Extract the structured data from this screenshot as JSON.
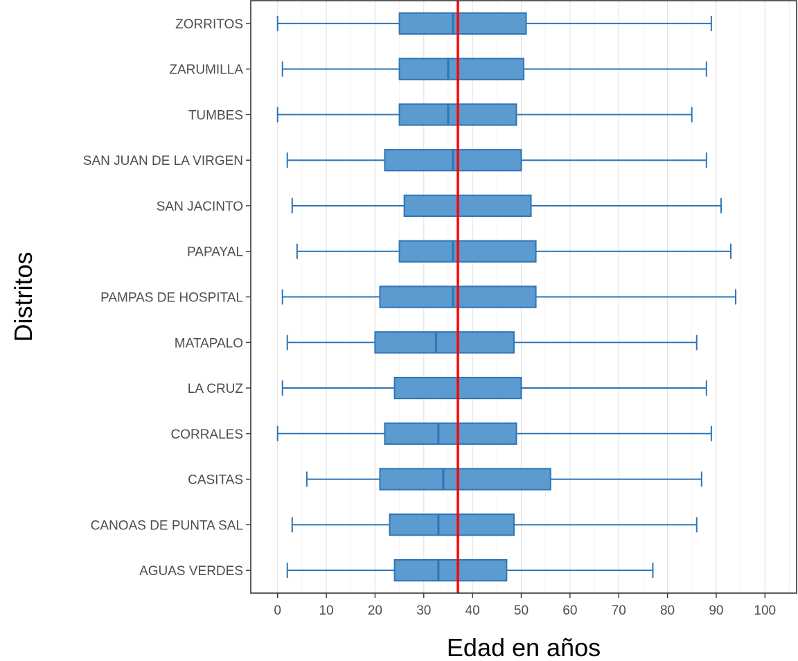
{
  "chart_data": {
    "type": "boxplot",
    "orientation": "horizontal",
    "xlabel": "Edad en años",
    "ylabel": "Distritos",
    "xlim": [
      -5.5,
      106.5
    ],
    "x_ticks": [
      0,
      10,
      20,
      30,
      40,
      50,
      60,
      70,
      80,
      90,
      100
    ],
    "grid": "vertical major and minor lines, light grey",
    "reference_line": {
      "x": 37,
      "color": "#ff0000"
    },
    "box_fill": "#5b9bd0",
    "box_stroke": "#2e75b6",
    "categories": [
      "ZORRITOS",
      "ZARUMILLA",
      "TUMBES",
      "SAN JUAN DE LA VIRGEN",
      "SAN JACINTO",
      "PAPAYAL",
      "PAMPAS DE HOSPITAL",
      "MATAPALO",
      "LA CRUZ",
      "CORRALES",
      "CASITAS",
      "CANOAS DE PUNTA SAL",
      "AGUAS VERDES"
    ],
    "boxes": [
      {
        "min": 0,
        "q1": 25,
        "median": 36,
        "q3": 51,
        "max": 89
      },
      {
        "min": 1,
        "q1": 25,
        "median": 35,
        "q3": 50.5,
        "max": 88
      },
      {
        "min": 0,
        "q1": 25,
        "median": 35,
        "q3": 49,
        "max": 85
      },
      {
        "min": 2,
        "q1": 22,
        "median": 36,
        "q3": 50,
        "max": 88
      },
      {
        "min": 3,
        "q1": 26,
        "median": 37,
        "q3": 52,
        "max": 91
      },
      {
        "min": 4,
        "q1": 25,
        "median": 36,
        "q3": 53,
        "max": 93
      },
      {
        "min": 1,
        "q1": 21,
        "median": 36,
        "q3": 53,
        "max": 94
      },
      {
        "min": 2,
        "q1": 20,
        "median": 32.5,
        "q3": 48.5,
        "max": 86
      },
      {
        "min": 1,
        "q1": 24,
        "median": 37,
        "q3": 50,
        "max": 88
      },
      {
        "min": 0,
        "q1": 22,
        "median": 33,
        "q3": 49,
        "max": 89
      },
      {
        "min": 6,
        "q1": 21,
        "median": 34,
        "q3": 56,
        "max": 87
      },
      {
        "min": 3,
        "q1": 23,
        "median": 33,
        "q3": 48.5,
        "max": 86
      },
      {
        "min": 2,
        "q1": 24,
        "median": 33,
        "q3": 47,
        "max": 77
      }
    ]
  }
}
